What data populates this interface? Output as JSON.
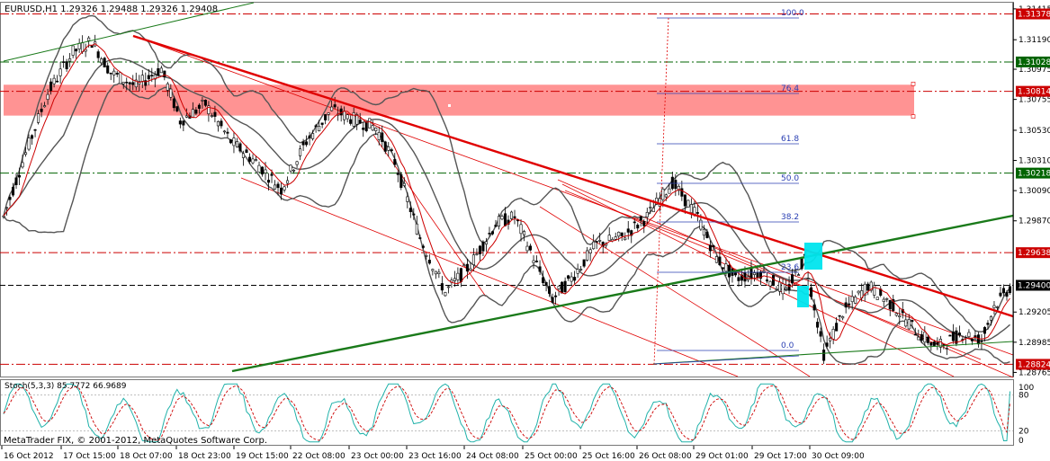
{
  "window": {
    "symbol_info": "EURUSD,H1  1.29326 1.29488 1.29326 1.29408",
    "copyright": "MetaTrader FIX, © 2001-2012, MetaQuotes Software Corp."
  },
  "price_axis": {
    "ticks": [
      "1.31415",
      "1.31190",
      "1.30975",
      "1.30755",
      "1.30530",
      "1.30310",
      "1.30090",
      "1.29870",
      "1.29205",
      "1.28985",
      "1.28765"
    ],
    "range": [
      1.28735,
      1.3146
    ]
  },
  "price_tags": [
    {
      "label": "1.31378",
      "value": 1.31378,
      "bg": "#cc0000",
      "fg": "#ffffff",
      "line": "#cc0000",
      "style": "dashdot"
    },
    {
      "label": "1.31028",
      "value": 1.31028,
      "bg": "#006400",
      "fg": "#ffffff",
      "line": "#006400",
      "style": "dashdot"
    },
    {
      "label": "1.30814",
      "value": 1.30814,
      "bg": "#cc0000",
      "fg": "#ffffff",
      "line": "#cc0000",
      "style": "dashdot"
    },
    {
      "label": "1.30218",
      "value": 1.30218,
      "bg": "#006400",
      "fg": "#ffffff",
      "line": "#006400",
      "style": "dashdot"
    },
    {
      "label": "1.29638",
      "value": 1.29638,
      "bg": "#cc0000",
      "fg": "#ffffff",
      "line": "#cc0000",
      "style": "dashdot"
    },
    {
      "label": "1.29400",
      "value": 1.294,
      "bg": "#000000",
      "fg": "#ffffff",
      "line": "#000000",
      "style": "dash"
    },
    {
      "label": "1.28824",
      "value": 1.28824,
      "bg": "#cc0000",
      "fg": "#ffffff",
      "line": "#cc0000",
      "style": "dashdot"
    }
  ],
  "time_axis": {
    "labels": [
      "16 Oct 2012",
      "17 Oct 15:00",
      "18 Oct 07:00",
      "18 Oct 23:00",
      "19 Oct 15:00",
      "22 Oct 08:00",
      "23 Oct 00:00",
      "23 Oct 16:00",
      "24 Oct 08:00",
      "25 Oct 00:00",
      "25 Oct 16:00",
      "26 Oct 08:00",
      "29 Oct 01:00",
      "29 Oct 17:00",
      "30 Oct 09:00"
    ]
  },
  "fibonacci": {
    "levels": [
      "100.0",
      "76.4",
      "61.8",
      "50.0",
      "38.2",
      "23.6",
      "0.0"
    ],
    "color": "#2a3fb3"
  },
  "resistance_zone": {
    "top": 1.30862,
    "bottom": 1.30637,
    "color": "#ff8080"
  },
  "stochastic": {
    "label": "Stoch(5,3,3) 85.7772 66.9689",
    "scale": [
      "100",
      "80",
      "20",
      "0"
    ],
    "main_color": "#20b2aa",
    "signal_color": "#cc0000"
  },
  "colors": {
    "candle": "#000000",
    "ma": "#cc0000",
    "bollinger": "#555555",
    "trend_red": "#e00000",
    "trend_green": "#1a7a1a",
    "highlight": "#00e5ee"
  }
}
